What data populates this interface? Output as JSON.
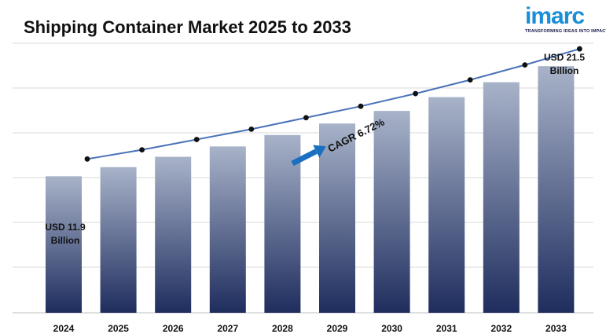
{
  "header": {
    "title": "Shipping Container Market 2025 to 2033"
  },
  "logo": {
    "word": "imarc",
    "tagline": "TRANSFORMING IDEAS INTO IMPACT",
    "color": "#1a8fd8"
  },
  "chart_data": {
    "type": "bar",
    "title": "Shipping Container Market 2025 to 2033",
    "xlabel": "",
    "ylabel": "",
    "categories": [
      "2024",
      "2025",
      "2026",
      "2027",
      "2028",
      "2029",
      "2030",
      "2031",
      "2032",
      "2033"
    ],
    "series": [
      {
        "values": [
          11.9,
          12.7,
          13.6,
          14.5,
          15.5,
          16.5,
          17.6,
          18.8,
          20.1,
          21.5
        ]
      }
    ],
    "line_overlay": true,
    "ylim": [
      0,
      23.5
    ],
    "grid": true,
    "annotations": {
      "start_label": [
        "USD 11.9",
        "Billion"
      ],
      "end_label": [
        "USD 21.5",
        "Billion"
      ],
      "cagr_label": "CAGR 6.72%"
    },
    "colors": {
      "bar_top": "#a8b3c9",
      "bar_bottom": "#1f2d5e",
      "line": "#4a72b8",
      "marker": "#111111",
      "arrow": "#1a6fc0"
    }
  }
}
